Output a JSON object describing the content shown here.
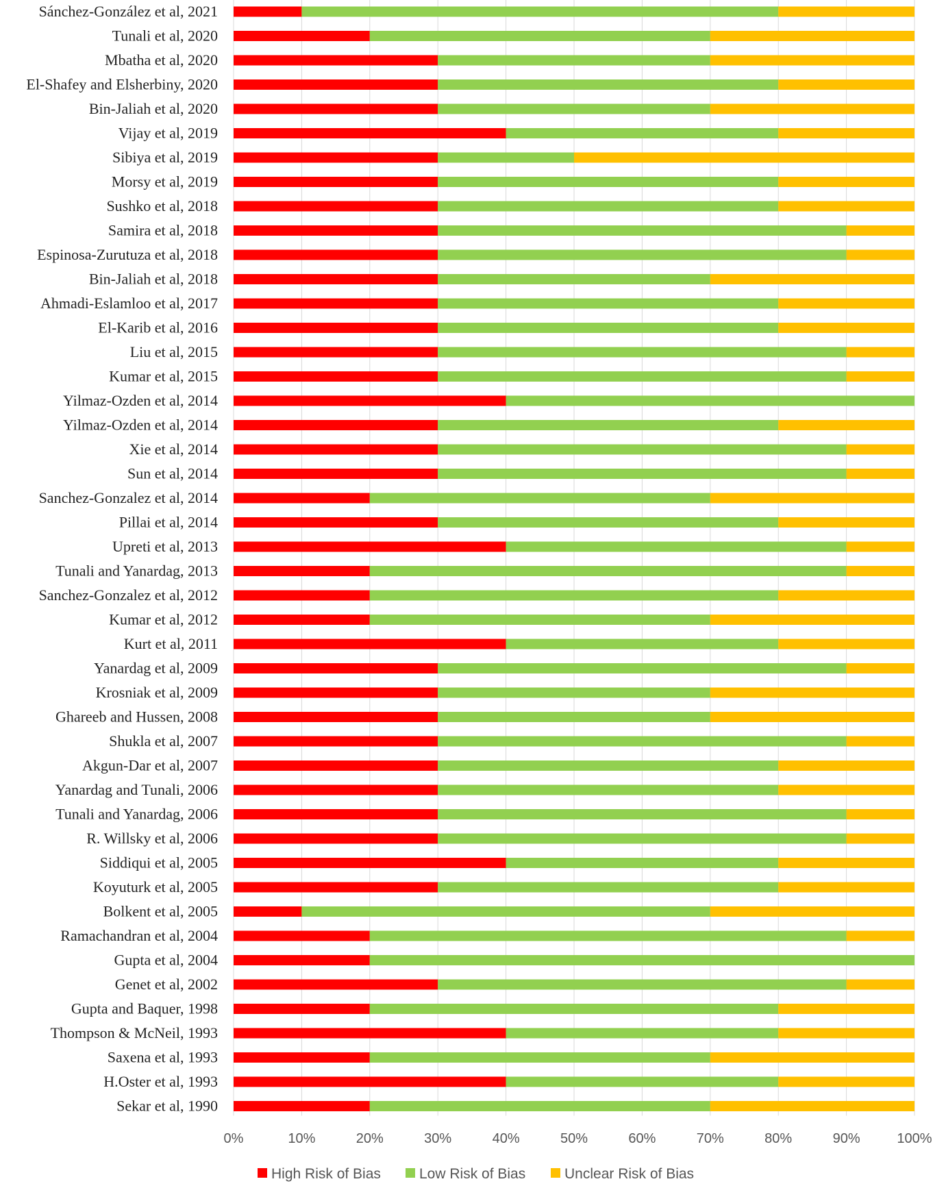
{
  "chart_data": {
    "type": "bar",
    "orientation": "horizontal",
    "stacked": "percent",
    "title": "",
    "xlabel": "",
    "ylabel": "",
    "xlim": [
      0,
      100
    ],
    "x_ticks": [
      "0%",
      "10%",
      "20%",
      "30%",
      "40%",
      "50%",
      "60%",
      "70%",
      "80%",
      "90%",
      "100%"
    ],
    "grid": true,
    "legend_position": "bottom",
    "categories": [
      "Sánchez-González et al, 2021",
      "Tunali et al, 2020",
      "Mbatha et al, 2020",
      "El-Shafey and Elsherbiny, 2020",
      "Bin-Jaliah et al, 2020",
      "Vijay et al, 2019",
      "Sibiya et al, 2019",
      "Morsy et al, 2019",
      "Sushko et al, 2018",
      "Samira et al, 2018",
      "Espinosa-Zurutuza et al, 2018",
      "Bin-Jaliah et al, 2018",
      "Ahmadi-Eslamloo et al, 2017",
      "El-Karib et al, 2016",
      "Liu et al, 2015",
      "Kumar et al, 2015",
      "Yilmaz-Ozden et al, 2014",
      "Yilmaz-Ozden et al, 2014",
      "Xie et al, 2014",
      "Sun et al, 2014",
      "Sanchez-Gonzalez et al, 2014",
      "Pillai et al, 2014",
      "Upreti et al, 2013",
      "Tunali and Yanardag, 2013",
      "Sanchez-Gonzalez et al, 2012",
      "Kumar et al, 2012",
      "Kurt et al, 2011",
      "Yanardag et al, 2009",
      "Krosniak et al, 2009",
      "Ghareeb and Hussen, 2008",
      "Shukla et al, 2007",
      "Akgun-Dar et al, 2007",
      "Yanardag and Tunali, 2006",
      "Tunali and Yanardag, 2006",
      "R. Willsky et al, 2006",
      "Siddiqui et al, 2005",
      "Koyuturk et al, 2005",
      "Bolkent et al, 2005",
      "Ramachandran et al, 2004",
      "Gupta et al, 2004",
      "Genet et al, 2002",
      "Gupta and Baquer, 1998",
      "Thompson & McNeil, 1993",
      "Saxena et al, 1993",
      "H.Oster et al, 1993",
      "Sekar et al, 1990"
    ],
    "series": [
      {
        "name": "High Risk of Bias",
        "color": "#ff0000",
        "values": [
          10,
          20,
          30,
          30,
          30,
          40,
          30,
          30,
          30,
          30,
          30,
          30,
          30,
          30,
          30,
          30,
          40,
          30,
          30,
          30,
          20,
          30,
          40,
          20,
          20,
          20,
          40,
          30,
          30,
          30,
          30,
          30,
          30,
          30,
          30,
          40,
          30,
          10,
          20,
          20,
          30,
          20,
          40,
          20,
          40,
          20
        ]
      },
      {
        "name": "Low Risk of Bias",
        "color": "#92d050",
        "values": [
          70,
          50,
          40,
          50,
          40,
          40,
          20,
          50,
          50,
          60,
          60,
          40,
          50,
          50,
          60,
          60,
          60,
          50,
          60,
          60,
          50,
          50,
          50,
          70,
          60,
          50,
          40,
          60,
          40,
          40,
          60,
          50,
          50,
          60,
          60,
          40,
          50,
          60,
          70,
          80,
          60,
          60,
          40,
          50,
          40,
          50
        ]
      },
      {
        "name": "Unclear Risk of Bias",
        "color": "#ffc000",
        "values": [
          20,
          30,
          30,
          20,
          30,
          20,
          50,
          20,
          20,
          10,
          10,
          30,
          20,
          20,
          10,
          10,
          0,
          20,
          10,
          10,
          30,
          20,
          10,
          10,
          20,
          30,
          20,
          10,
          30,
          30,
          10,
          20,
          20,
          10,
          10,
          20,
          20,
          30,
          10,
          0,
          10,
          20,
          20,
          30,
          20,
          30
        ]
      }
    ]
  }
}
